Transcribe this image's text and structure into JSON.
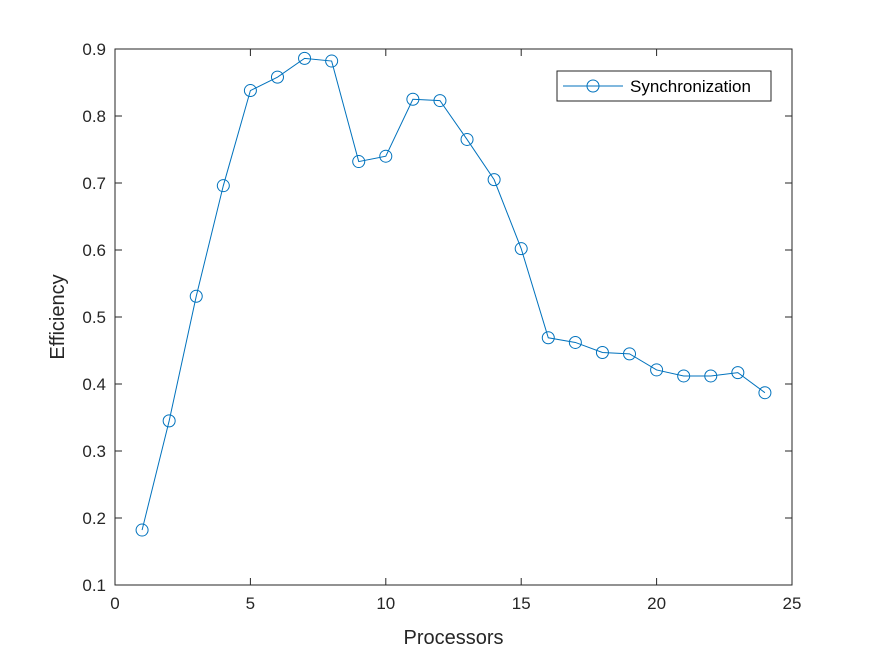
{
  "chart_data": {
    "type": "line",
    "title": "",
    "xlabel": "Processors",
    "ylabel": "Efficiency",
    "xlim": [
      0,
      25
    ],
    "ylim": [
      0.1,
      0.9
    ],
    "xticks": [
      0,
      5,
      10,
      15,
      20,
      25
    ],
    "yticks": [
      0.1,
      0.2,
      0.3,
      0.4,
      0.5,
      0.6,
      0.7,
      0.8,
      0.9
    ],
    "xtick_labels": [
      "0",
      "5",
      "10",
      "15",
      "20",
      "25"
    ],
    "ytick_labels": [
      "0.1",
      "0.2",
      "0.3",
      "0.4",
      "0.5",
      "0.6",
      "0.7",
      "0.8",
      "0.9"
    ],
    "grid": false,
    "legend_position": "top-right",
    "series": [
      {
        "name": "Synchronization",
        "color": "#0072bd",
        "marker": "circle-open",
        "x": [
          1,
          2,
          3,
          4,
          5,
          6,
          7,
          8,
          9,
          10,
          11,
          12,
          13,
          14,
          15,
          16,
          17,
          18,
          19,
          20,
          21,
          22,
          23,
          24
        ],
        "y": [
          0.182,
          0.345,
          0.531,
          0.696,
          0.838,
          0.858,
          0.886,
          0.882,
          0.732,
          0.74,
          0.825,
          0.823,
          0.765,
          0.705,
          0.602,
          0.469,
          0.462,
          0.447,
          0.445,
          0.421,
          0.412,
          0.412,
          0.417,
          0.387
        ]
      }
    ]
  }
}
